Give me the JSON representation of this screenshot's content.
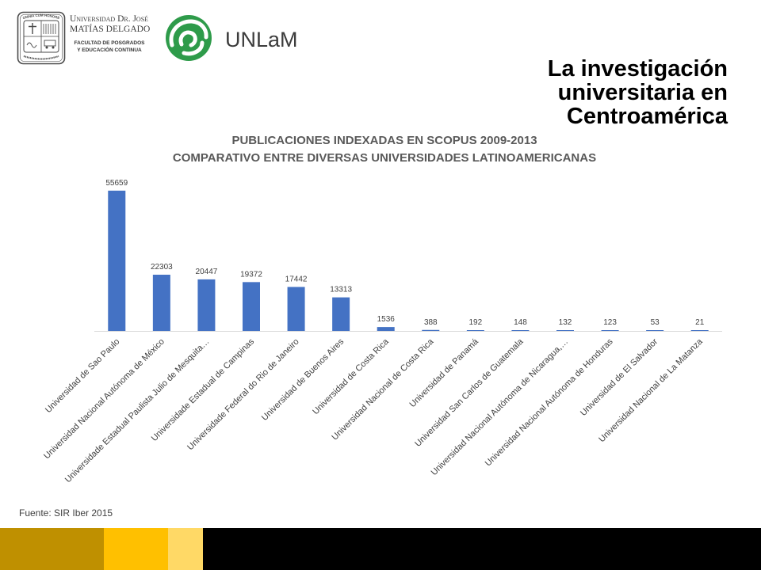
{
  "header": {
    "university_logo": {
      "seal_icon": "university-seal-icon",
      "seal_motto": "OMNIA CUM HONORE",
      "name_line1": "Universidad Dr. José",
      "name_line2": "MATÍAS DELGADO",
      "faculty_line1": "FACULTAD DE POSGRADOS",
      "faculty_line2": "Y EDUCACIÓN CONTINUA"
    },
    "partner_logo": {
      "icon": "unlam-swirl-icon",
      "name": "UNLaM",
      "color": "#2E9B4A"
    }
  },
  "slide": {
    "title_lines": [
      "La investigación",
      "universitaria en",
      "Centroamérica"
    ],
    "source": "Fuente: SIR Iber 2015"
  },
  "chart_data": {
    "type": "bar",
    "title": "PUBLICACIONES INDEXADAS EN SCOPUS 2009-2013",
    "subtitle": "COMPARATIVO ENTRE DIVERSAS UNIVERSIDADES LATINOAMERICANAS",
    "categories": [
      "Universidad de Sao Paulo",
      "Universidad Nacional Autónoma de México",
      "Universidade Estadual Paulista Julio de Mesquita…",
      "Universidade Estadual de Campinas",
      "Universidade Federal do Rio de Janeiro",
      "Universidad de Buenos Aires",
      "Universidad de Costa Rica",
      "Universidad Nacional de Costa Rica",
      "Universidad de Panamá",
      "Universidad San Carlos de Guatemala",
      "Universidad Nacional Autónoma de Nicaragua,…",
      "Universidad Nacional Autónoma de Honduras",
      "Universidad de El Salvador",
      "Universidad Nacional de La Matanza"
    ],
    "values": [
      55659,
      22303,
      20447,
      19372,
      17442,
      13313,
      1536,
      388,
      192,
      148,
      132,
      123,
      53,
      21
    ],
    "ylim": [
      0,
      60000
    ],
    "data_labels": true,
    "y_axis_visible": false,
    "grid": false,
    "legend": "none",
    "bar_color": "#4472C4",
    "axis_color": "#D9D9D9"
  },
  "theme": {
    "title_color": "#000000",
    "chart_title_color": "#595959",
    "label_color": "#404040",
    "footer_colors": [
      "#BF9000",
      "#FFC000",
      "#FFD966",
      "#000000"
    ]
  }
}
